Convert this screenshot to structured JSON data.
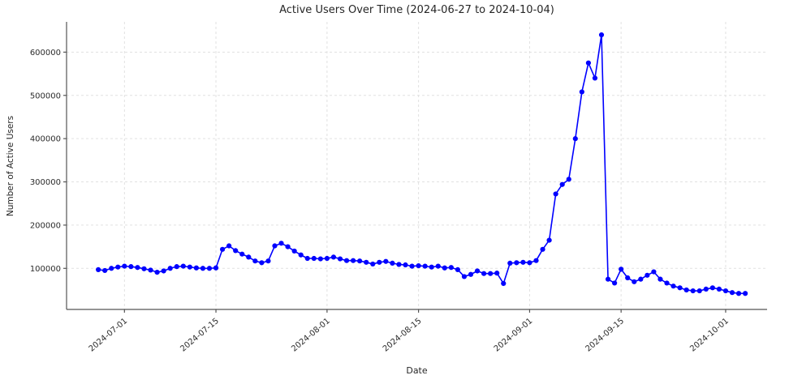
{
  "chart_data": {
    "type": "line",
    "title": "Active Users Over Time (2024-06-27 to 2024-10-04)",
    "xlabel": "Date",
    "ylabel": "Number of Active Users",
    "series_name": "Active Users",
    "line_color": "#0000ff",
    "marker": "circle",
    "grid": true,
    "legend": "none",
    "start_date": "2024-06-27",
    "end_date": "2024-10-04",
    "ylim": [
      5000,
      670000
    ],
    "xlim_index": [
      -4.86,
      102.34
    ],
    "y_ticks": [
      100000,
      200000,
      300000,
      400000,
      500000,
      600000
    ],
    "x_tick_labels": [
      "2024-07-01",
      "2024-07-15",
      "2024-08-01",
      "2024-08-15",
      "2024-09-01",
      "2024-09-15",
      "2024-10-01"
    ],
    "x_tick_indices": [
      4,
      18,
      35,
      49,
      66,
      80,
      96
    ],
    "dates": [
      "2024-06-27",
      "2024-06-28",
      "2024-06-29",
      "2024-06-30",
      "2024-07-01",
      "2024-07-02",
      "2024-07-03",
      "2024-07-04",
      "2024-07-05",
      "2024-07-06",
      "2024-07-07",
      "2024-07-08",
      "2024-07-09",
      "2024-07-10",
      "2024-07-11",
      "2024-07-12",
      "2024-07-13",
      "2024-07-14",
      "2024-07-15",
      "2024-07-16",
      "2024-07-17",
      "2024-07-18",
      "2024-07-19",
      "2024-07-20",
      "2024-07-21",
      "2024-07-22",
      "2024-07-23",
      "2024-07-24",
      "2024-07-25",
      "2024-07-26",
      "2024-07-27",
      "2024-07-28",
      "2024-07-29",
      "2024-07-30",
      "2024-07-31",
      "2024-08-01",
      "2024-08-02",
      "2024-08-03",
      "2024-08-04",
      "2024-08-05",
      "2024-08-06",
      "2024-08-07",
      "2024-08-08",
      "2024-08-09",
      "2024-08-10",
      "2024-08-11",
      "2024-08-12",
      "2024-08-13",
      "2024-08-14",
      "2024-08-15",
      "2024-08-16",
      "2024-08-17",
      "2024-08-18",
      "2024-08-19",
      "2024-08-20",
      "2024-08-21",
      "2024-08-22",
      "2024-08-23",
      "2024-08-24",
      "2024-08-25",
      "2024-08-26",
      "2024-08-27",
      "2024-08-28",
      "2024-08-29",
      "2024-08-30",
      "2024-08-31",
      "2024-09-01",
      "2024-09-02",
      "2024-09-03",
      "2024-09-04",
      "2024-09-05",
      "2024-09-06",
      "2024-09-07",
      "2024-09-08",
      "2024-09-09",
      "2024-09-10",
      "2024-09-11",
      "2024-09-12",
      "2024-09-13",
      "2024-09-14",
      "2024-09-15",
      "2024-09-16",
      "2024-09-17",
      "2024-09-18",
      "2024-09-19",
      "2024-09-20",
      "2024-09-21",
      "2024-09-22",
      "2024-09-23",
      "2024-09-24",
      "2024-09-25",
      "2024-09-26",
      "2024-09-27",
      "2024-09-28",
      "2024-09-29",
      "2024-09-30",
      "2024-10-01",
      "2024-10-02",
      "2024-10-03",
      "2024-10-04"
    ],
    "values": [
      97000,
      95000,
      100000,
      103000,
      105000,
      104000,
      102000,
      99000,
      96000,
      91000,
      94000,
      100000,
      104000,
      105000,
      103000,
      101000,
      100000,
      100000,
      101000,
      144000,
      152000,
      141000,
      133000,
      126000,
      117000,
      113000,
      117000,
      152000,
      158000,
      150000,
      140000,
      131000,
      123000,
      123000,
      122000,
      123000,
      126000,
      122000,
      118000,
      118000,
      117000,
      114000,
      110000,
      114000,
      116000,
      112000,
      109000,
      108000,
      105000,
      106000,
      105000,
      103000,
      105000,
      101000,
      102000,
      97000,
      81000,
      86000,
      94000,
      88000,
      88000,
      89000,
      65000,
      112000,
      113000,
      114000,
      113000,
      118000,
      144000,
      165000,
      272000,
      294000,
      306000,
      400000,
      508000,
      575000,
      540000,
      640000,
      75000,
      66000,
      98000,
      78000,
      69000,
      75000,
      84000,
      92000,
      75000,
      66000,
      59000,
      55000,
      50000,
      48000,
      48000,
      52000,
      55000,
      52000,
      48000,
      44000,
      42000,
      42000
    ]
  }
}
